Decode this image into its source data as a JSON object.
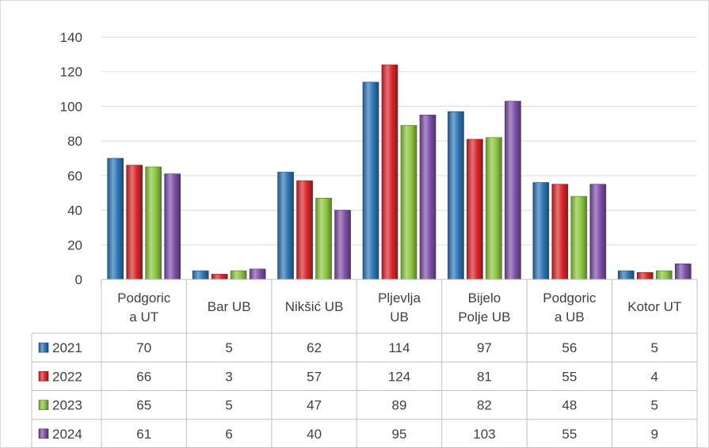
{
  "chart_data": {
    "type": "bar",
    "title": "",
    "xlabel": "",
    "ylabel": "",
    "ylim": [
      0,
      140
    ],
    "yticks": [
      0,
      20,
      40,
      60,
      80,
      100,
      120,
      140
    ],
    "grid": true,
    "legend": "data-table",
    "categories": [
      [
        "Podgoric",
        "a UT"
      ],
      [
        "Bar UB"
      ],
      [
        "Nikšić UB"
      ],
      [
        "Pljevlja",
        "UB"
      ],
      [
        "Bijelo",
        "Polje UB"
      ],
      [
        "Podgoric",
        "a UB"
      ],
      [
        "Kotor UT"
      ]
    ],
    "series": [
      {
        "name": "2021",
        "color": "#2e75b6",
        "values": [
          70,
          5,
          62,
          114,
          97,
          56,
          5
        ]
      },
      {
        "name": "2022",
        "color": "#d9262a",
        "values": [
          66,
          3,
          57,
          124,
          81,
          55,
          4
        ]
      },
      {
        "name": "2023",
        "color": "#8cc63f",
        "values": [
          65,
          5,
          47,
          89,
          82,
          48,
          5
        ]
      },
      {
        "name": "2024",
        "color": "#7e4fa8",
        "values": [
          61,
          6,
          40,
          95,
          103,
          55,
          9
        ]
      }
    ]
  }
}
